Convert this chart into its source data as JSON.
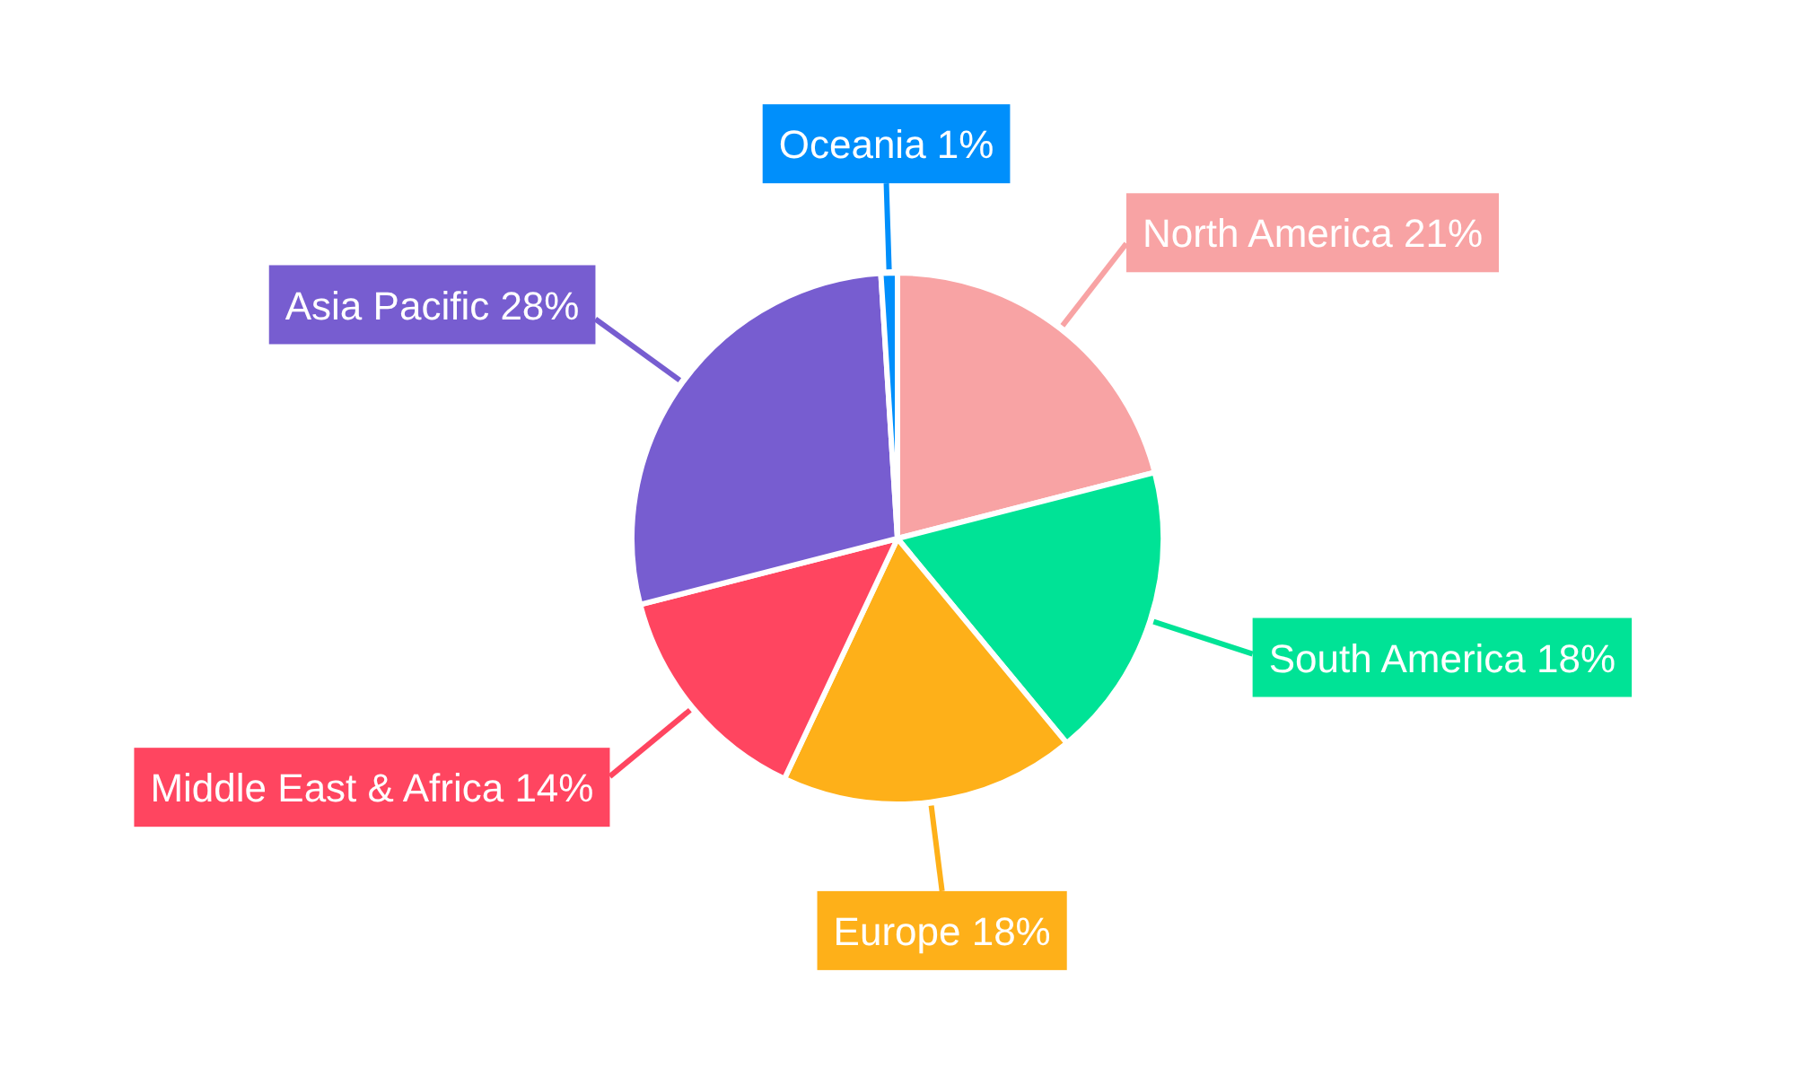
{
  "chart_data": {
    "type": "pie",
    "categories": [
      "North America",
      "South America",
      "Europe",
      "Middle East & Africa",
      "Asia Pacific",
      "Oceania"
    ],
    "values": [
      21,
      18,
      18,
      14,
      28,
      1
    ],
    "value_labels": [
      "21%",
      "18%",
      "18%",
      "14%",
      "28%",
      "1%"
    ],
    "colors": [
      "#f8a3a4",
      "#00e396",
      "#feb019",
      "#ff4560",
      "#775dd0",
      "#008ffb"
    ]
  }
}
